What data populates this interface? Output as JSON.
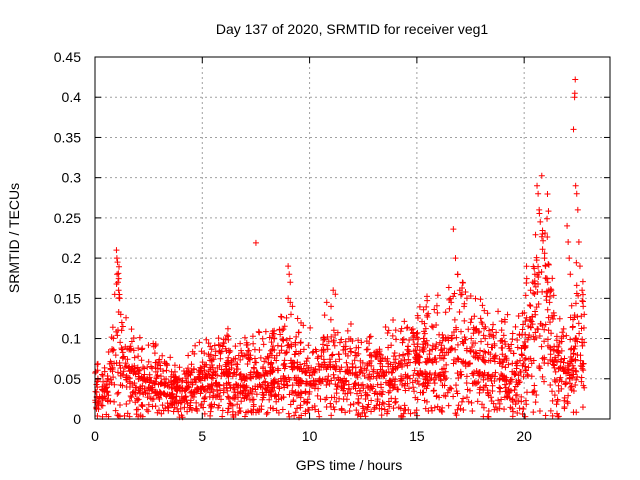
{
  "chart_data": {
    "type": "scatter",
    "title": "Day 137 of 2020, SRMTID for receiver veg1",
    "xlabel": "GPS time / hours",
    "ylabel": "SRMTID / TECUs",
    "xlim": [
      0,
      24
    ],
    "ylim": [
      0,
      0.45
    ],
    "x_ticks": [
      0,
      5,
      10,
      15,
      20
    ],
    "x_tick_labels": [
      "0",
      "5",
      "10",
      "15",
      "20"
    ],
    "y_ticks": [
      0,
      0.05,
      0.1,
      0.15,
      0.2,
      0.25,
      0.3,
      0.35,
      0.4,
      0.45
    ],
    "y_tick_labels": [
      "0",
      "0.05",
      "0.1",
      "0.15",
      "0.2",
      "0.25",
      "0.3",
      "0.35",
      "0.4",
      "0.45"
    ],
    "grid": true,
    "marker": "plus",
    "color": "#ff0000",
    "envelope": {
      "description": "approximate typical level of the point cloud vs time (hours, TECUs)",
      "points": [
        [
          0,
          0.03
        ],
        [
          0.6,
          0.03
        ],
        [
          1.0,
          0.1
        ],
        [
          1.4,
          0.06
        ],
        [
          2.0,
          0.045
        ],
        [
          3.0,
          0.04
        ],
        [
          4.0,
          0.03
        ],
        [
          5.0,
          0.045
        ],
        [
          6.0,
          0.05
        ],
        [
          7.0,
          0.045
        ],
        [
          8.0,
          0.05
        ],
        [
          9.0,
          0.06
        ],
        [
          10.0,
          0.05
        ],
        [
          11.0,
          0.06
        ],
        [
          12.0,
          0.05
        ],
        [
          13.0,
          0.045
        ],
        [
          14.0,
          0.055
        ],
        [
          15.0,
          0.065
        ],
        [
          16.0,
          0.065
        ],
        [
          17.0,
          0.085
        ],
        [
          18.0,
          0.065
        ],
        [
          19.0,
          0.06
        ],
        [
          19.6,
          0.05
        ],
        [
          20.2,
          0.09
        ],
        [
          20.6,
          0.13
        ],
        [
          21.0,
          0.14
        ],
        [
          21.5,
          0.06
        ],
        [
          22.0,
          0.05
        ],
        [
          22.5,
          0.09
        ],
        [
          22.8,
          0.08
        ]
      ]
    },
    "points": [
      [
        1.0,
        0.21
      ],
      [
        1.02,
        0.2
      ],
      [
        1.05,
        0.195
      ],
      [
        1.03,
        0.18
      ],
      [
        1.07,
        0.17
      ],
      [
        1.1,
        0.16
      ],
      [
        1.15,
        0.15
      ],
      [
        1.2,
        0.13
      ],
      [
        1.25,
        0.12
      ],
      [
        1.3,
        0.115
      ],
      [
        7.5,
        0.219
      ],
      [
        9.0,
        0.19
      ],
      [
        9.05,
        0.18
      ],
      [
        9.1,
        0.17
      ],
      [
        9.0,
        0.15
      ],
      [
        9.1,
        0.145
      ],
      [
        9.2,
        0.14
      ],
      [
        11.1,
        0.16
      ],
      [
        11.2,
        0.155
      ],
      [
        10.8,
        0.145
      ],
      [
        11.0,
        0.14
      ],
      [
        16.7,
        0.236
      ],
      [
        16.8,
        0.2
      ],
      [
        16.9,
        0.18
      ],
      [
        17.0,
        0.16
      ],
      [
        17.1,
        0.155
      ],
      [
        16.6,
        0.145
      ],
      [
        17.2,
        0.14
      ],
      [
        20.3,
        0.16
      ],
      [
        20.4,
        0.17
      ],
      [
        20.5,
        0.18
      ],
      [
        20.6,
        0.29
      ],
      [
        20.65,
        0.28
      ],
      [
        20.7,
        0.26
      ],
      [
        20.75,
        0.245
      ],
      [
        20.85,
        0.23
      ],
      [
        20.95,
        0.2
      ],
      [
        21.0,
        0.19
      ],
      [
        21.05,
        0.175
      ],
      [
        21.1,
        0.17
      ],
      [
        21.15,
        0.16
      ],
      [
        22.0,
        0.24
      ],
      [
        22.05,
        0.22
      ],
      [
        22.1,
        0.2
      ],
      [
        22.15,
        0.18
      ],
      [
        22.3,
        0.36
      ],
      [
        22.35,
        0.4
      ],
      [
        22.36,
        0.405
      ],
      [
        22.38,
        0.422
      ],
      [
        22.4,
        0.29
      ],
      [
        22.45,
        0.28
      ],
      [
        22.5,
        0.26
      ],
      [
        22.55,
        0.22
      ],
      [
        22.6,
        0.19
      ],
      [
        22.7,
        0.16
      ],
      [
        22.75,
        0.14
      ],
      [
        22.8,
        0.13
      ]
    ]
  }
}
